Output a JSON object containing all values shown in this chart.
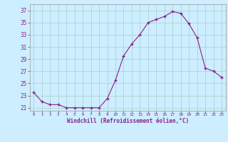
{
  "x": [
    0,
    1,
    2,
    3,
    4,
    5,
    6,
    7,
    8,
    9,
    10,
    11,
    12,
    13,
    14,
    15,
    16,
    17,
    18,
    19,
    20,
    21,
    22,
    23
  ],
  "y": [
    23.5,
    22.0,
    21.5,
    21.5,
    21.0,
    21.0,
    21.0,
    21.0,
    21.0,
    22.5,
    25.5,
    29.5,
    31.5,
    33.0,
    35.0,
    35.5,
    36.0,
    36.8,
    36.5,
    34.8,
    32.5,
    27.5,
    27.0,
    26.0
  ],
  "line_color": "#882288",
  "marker": "+",
  "marker_size": 3,
  "xlim": [
    -0.5,
    23.5
  ],
  "ylim": [
    20.5,
    38
  ],
  "yticks": [
    21,
    23,
    25,
    27,
    29,
    31,
    33,
    35,
    37
  ],
  "xticks": [
    0,
    1,
    2,
    3,
    4,
    5,
    6,
    7,
    8,
    9,
    10,
    11,
    12,
    13,
    14,
    15,
    16,
    17,
    18,
    19,
    20,
    21,
    22,
    23
  ],
  "xlabel": "Windchill (Refroidissement éolien,°C)",
  "background_color": "#cceeff",
  "grid_color": "#aacccc",
  "spine_color": "#999999"
}
